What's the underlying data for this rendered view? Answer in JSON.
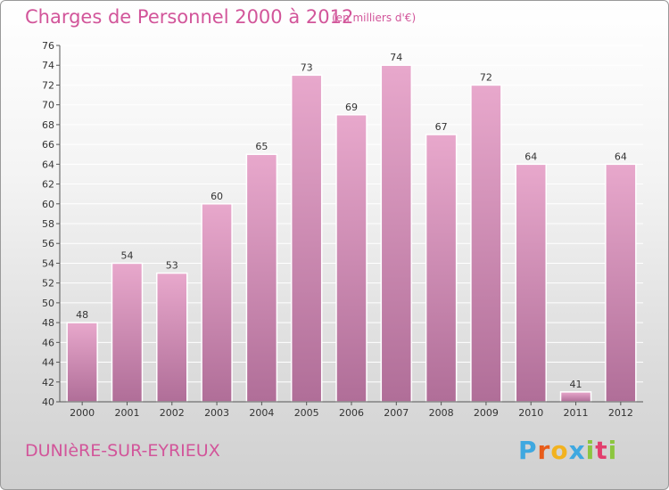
{
  "header": {
    "title": "Charges de Personnel 2000 à 2012",
    "subtitle": "(en milliers d'€)"
  },
  "footer": {
    "place": "DUNIèRE-SUR-EYRIEUX",
    "logo": "Proxiti"
  },
  "colors": {
    "title": "#d2559a",
    "bar": "#c97aa8",
    "grid": "#ffffff"
  },
  "chart_data": {
    "type": "bar",
    "categories": [
      "2000",
      "2001",
      "2002",
      "2003",
      "2004",
      "2005",
      "2006",
      "2007",
      "2008",
      "2009",
      "2010",
      "2011",
      "2012"
    ],
    "values": [
      48,
      54,
      53,
      60,
      65,
      73,
      69,
      74,
      67,
      72,
      64,
      41,
      64
    ],
    "title": "Charges de Personnel 2000 à 2012",
    "subtitle": "(en milliers d'€)",
    "xlabel": "",
    "ylabel": "",
    "ylim": [
      40,
      76
    ],
    "yticks": [
      40,
      42,
      44,
      46,
      48,
      50,
      52,
      54,
      56,
      58,
      60,
      62,
      64,
      66,
      68,
      70,
      72,
      74,
      76
    ],
    "grid": "horizontal"
  }
}
